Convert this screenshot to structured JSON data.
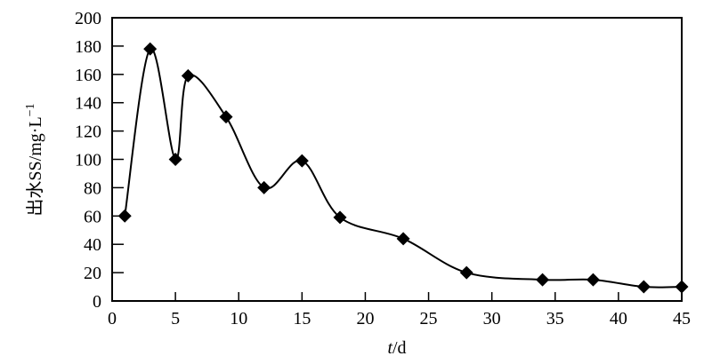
{
  "chart_data": {
    "type": "line",
    "title": "",
    "xlabel_italic": "t",
    "xlabel_rest": "/d",
    "ylabel": "出水SS/mg·L",
    "ylabel_sup": "−1",
    "xlim": [
      0,
      45
    ],
    "ylim": [
      0,
      200
    ],
    "xticks": [
      0,
      5,
      10,
      15,
      20,
      25,
      30,
      35,
      40,
      45
    ],
    "yticks": [
      0,
      20,
      40,
      60,
      80,
      100,
      120,
      140,
      160,
      180,
      200
    ],
    "grid": false,
    "marker": "diamond",
    "line_style": "smooth",
    "series": [
      {
        "name": "出水SS",
        "x": [
          1,
          3,
          5,
          6,
          9,
          12,
          15,
          18,
          23,
          28,
          34,
          38,
          42,
          45
        ],
        "y": [
          60,
          178,
          100,
          159,
          130,
          80,
          99,
          59,
          44,
          20,
          15,
          15,
          10,
          10
        ]
      }
    ]
  }
}
